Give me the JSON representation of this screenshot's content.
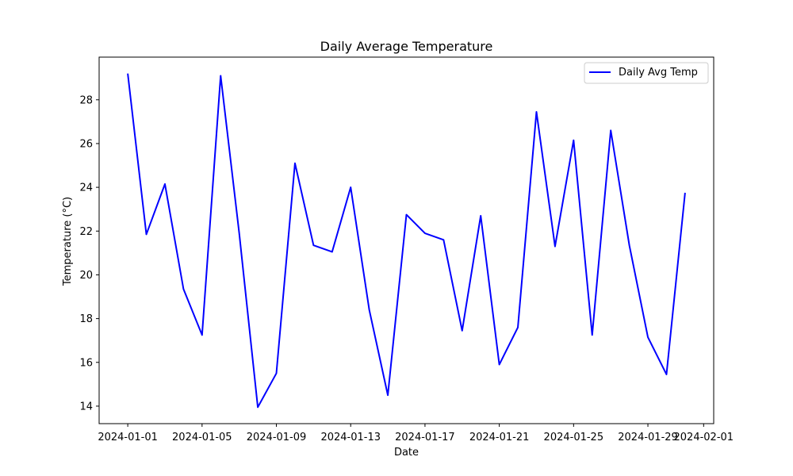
{
  "chart_data": {
    "type": "line",
    "title": "Daily Average Temperature",
    "xlabel": "Date",
    "ylabel": "Temperature (°C)",
    "x": [
      "2024-01-01",
      "2024-01-02",
      "2024-01-03",
      "2024-01-04",
      "2024-01-05",
      "2024-01-06",
      "2024-01-07",
      "2024-01-08",
      "2024-01-09",
      "2024-01-10",
      "2024-01-11",
      "2024-01-12",
      "2024-01-13",
      "2024-01-14",
      "2024-01-15",
      "2024-01-16",
      "2024-01-17",
      "2024-01-18",
      "2024-01-19",
      "2024-01-20",
      "2024-01-21",
      "2024-01-22",
      "2024-01-23",
      "2024-01-24",
      "2024-01-25",
      "2024-01-26",
      "2024-01-27",
      "2024-01-28",
      "2024-01-29",
      "2024-01-30",
      "2024-01-31"
    ],
    "series": [
      {
        "name": "Daily Avg Temp",
        "color": "#0000ff",
        "values": [
          29.2,
          21.85,
          24.15,
          19.35,
          17.25,
          29.1,
          21.9,
          13.95,
          15.5,
          25.1,
          21.35,
          21.05,
          24.0,
          18.4,
          14.5,
          22.75,
          21.9,
          21.6,
          17.45,
          22.7,
          15.9,
          17.6,
          27.45,
          21.3,
          26.15,
          17.25,
          26.6,
          21.35,
          17.15,
          15.45,
          23.75
        ]
      }
    ],
    "xticks": [
      "2024-01-01",
      "2024-01-05",
      "2024-01-09",
      "2024-01-13",
      "2024-01-17",
      "2024-01-21",
      "2024-01-25",
      "2024-01-29",
      "2024-02-01"
    ],
    "yticks": [
      14,
      16,
      18,
      20,
      22,
      24,
      26,
      28
    ],
    "xlim": [
      "2023-12-30T11:00",
      "2024-02-01T13:00"
    ],
    "ylim": [
      13.2,
      29.95
    ],
    "grid": false,
    "legend_position": "top-right"
  }
}
